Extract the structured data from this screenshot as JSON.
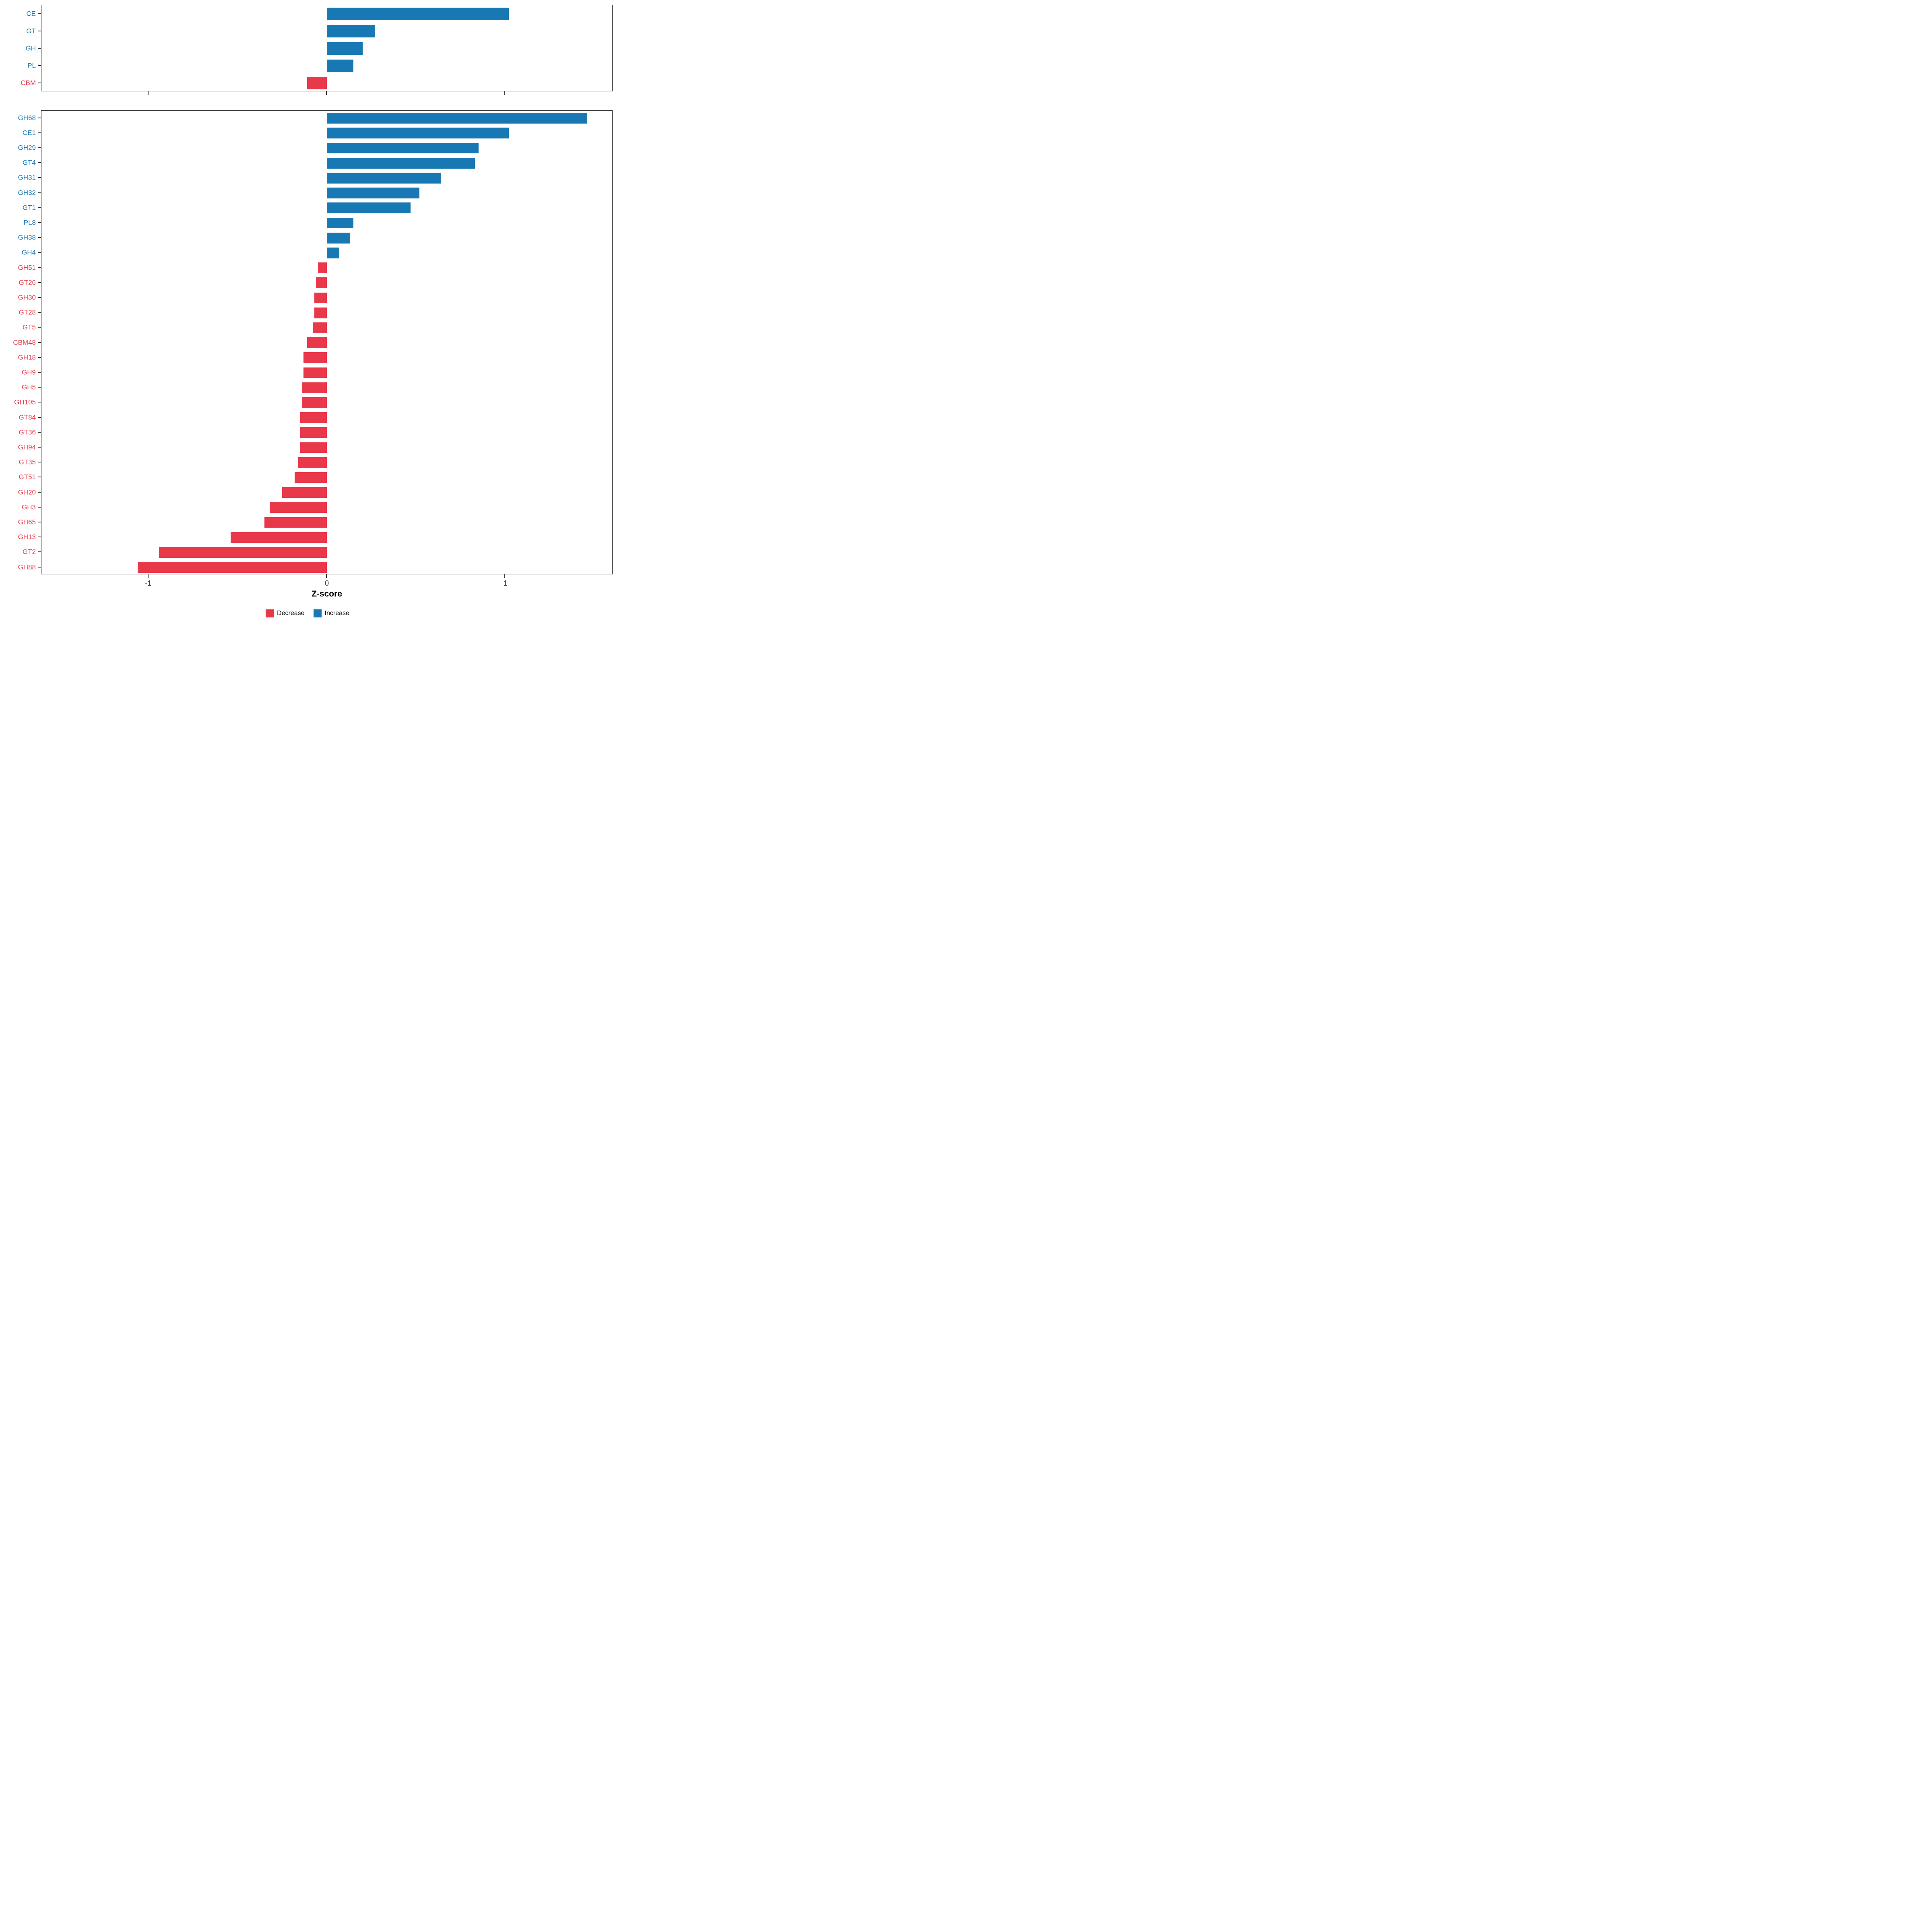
{
  "xlabel": "Z-score",
  "x_ticks": [
    "-1",
    "0",
    "1"
  ],
  "x_tick_values": [
    -1,
    0,
    1
  ],
  "x_domain": [
    -1.6,
    1.6
  ],
  "colors": {
    "increase": "#1878B4",
    "decrease": "#E8384A",
    "axis": "#333333"
  },
  "legend": {
    "decrease_label": "Decrease",
    "increase_label": "Increase"
  },
  "chart_data": [
    {
      "type": "bar",
      "orientation": "horizontal",
      "panel": "top",
      "title": "",
      "xlabel": "Z-score",
      "ylabel": "",
      "xlim": [
        -1.6,
        1.6
      ],
      "categories": [
        "CE",
        "GT",
        "GH",
        "PL",
        "CBM"
      ],
      "values": [
        1.02,
        0.27,
        0.2,
        0.15,
        -0.11
      ]
    },
    {
      "type": "bar",
      "orientation": "horizontal",
      "panel": "bottom",
      "title": "",
      "xlabel": "Z-score",
      "ylabel": "",
      "xlim": [
        -1.6,
        1.6
      ],
      "categories": [
        "GH68",
        "CE1",
        "GH29",
        "GT4",
        "GH31",
        "GH32",
        "GT1",
        "PL8",
        "GH38",
        "GH4",
        "GH51",
        "GT26",
        "GH30",
        "GT28",
        "GT5",
        "CBM48",
        "GH18",
        "GH9",
        "GH5",
        "GH105",
        "GT84",
        "GT36",
        "GH94",
        "GT35",
        "GT51",
        "GH20",
        "GH3",
        "GH65",
        "GH13",
        "GT2",
        "GH88"
      ],
      "values": [
        1.46,
        1.02,
        0.85,
        0.83,
        0.64,
        0.52,
        0.47,
        0.15,
        0.13,
        0.07,
        -0.05,
        -0.06,
        -0.07,
        -0.07,
        -0.08,
        -0.11,
        -0.13,
        -0.13,
        -0.14,
        -0.14,
        -0.15,
        -0.15,
        -0.15,
        -0.16,
        -0.18,
        -0.25,
        -0.32,
        -0.35,
        -0.54,
        -0.94,
        -1.06
      ]
    }
  ]
}
